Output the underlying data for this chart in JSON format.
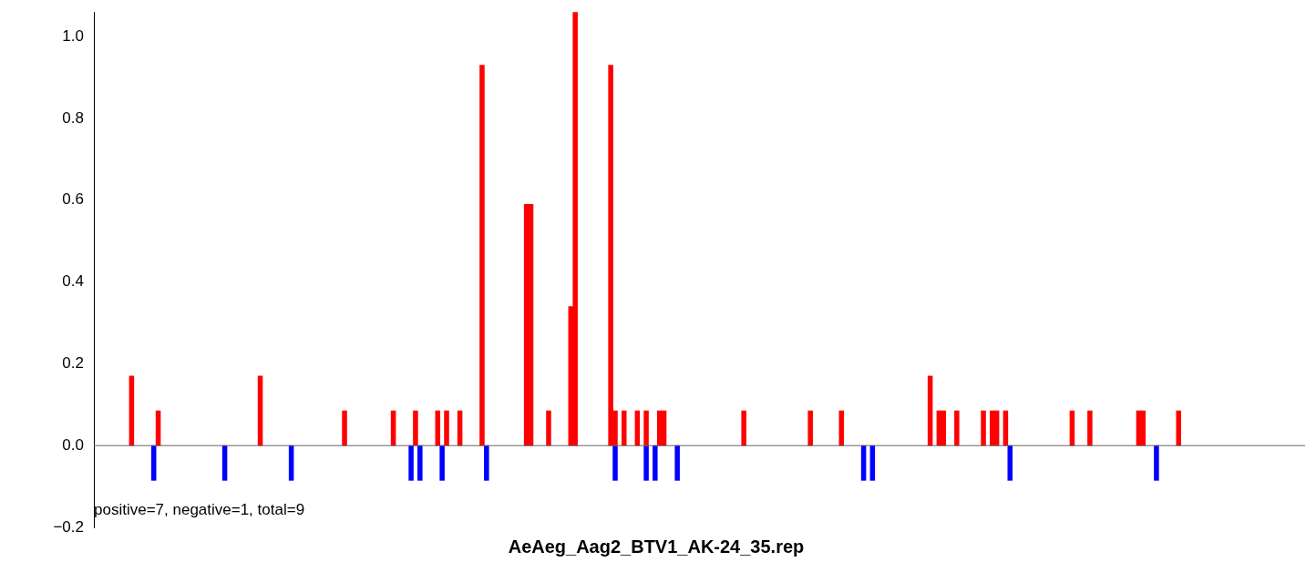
{
  "chart_data": {
    "type": "bar",
    "title": "AeAeg_Aag2_BTV1_AK-24_35.rep",
    "annotations": [
      "positive=7, negative=1, total=9"
    ],
    "categories": [
      null,
      null,
      null,
      null,
      null,
      null,
      null,
      null,
      null,
      null,
      null,
      null,
      null,
      null,
      null,
      null,
      null,
      null,
      null,
      null,
      null,
      null,
      null,
      null,
      null,
      null,
      null,
      null,
      null,
      null,
      null,
      null,
      null,
      null,
      null,
      null,
      null,
      null,
      null,
      null,
      null,
      null,
      null,
      null,
      null,
      null,
      null,
      null,
      null,
      null,
      null,
      null,
      null,
      null,
      null,
      null,
      null,
      null,
      null,
      null,
      null,
      null,
      null,
      null,
      null,
      null,
      null,
      null,
      null,
      null,
      null,
      null,
      null,
      null,
      null,
      null,
      null,
      null,
      null,
      null,
      null,
      null,
      null,
      null,
      null,
      null,
      null,
      null,
      null,
      null,
      null,
      null,
      null,
      null,
      null,
      null,
      null,
      null,
      null,
      null,
      null,
      null,
      null,
      null,
      null,
      null,
      null,
      null,
      null,
      null,
      null,
      null,
      null,
      null,
      null,
      null,
      null,
      null,
      null,
      null,
      null,
      null,
      null,
      null,
      null,
      null,
      null,
      null,
      null,
      null,
      null,
      null,
      null,
      null,
      null,
      null,
      null,
      null,
      null,
      null,
      null,
      null,
      null,
      null,
      null,
      null,
      null,
      null,
      null,
      null,
      null,
      null,
      null,
      null,
      null,
      null,
      null,
      null,
      null,
      null,
      null,
      null,
      null,
      null,
      null,
      null,
      null,
      null,
      null,
      null,
      null,
      null,
      null,
      null,
      null,
      null,
      null,
      null,
      null,
      null,
      null,
      null,
      null,
      null,
      null,
      null,
      null,
      null,
      null,
      null,
      null,
      null,
      null,
      null,
      null,
      null,
      null,
      null,
      null,
      null,
      null,
      null,
      null,
      null,
      null,
      null,
      null,
      null,
      null,
      null,
      null,
      null,
      null,
      null,
      null,
      null,
      null,
      null,
      null,
      null,
      null,
      null,
      null,
      null,
      null,
      null,
      null,
      null,
      null,
      null,
      null,
      null,
      null,
      null,
      null,
      null,
      null,
      null,
      null,
      null,
      null,
      null,
      null,
      null,
      null,
      null,
      null,
      null,
      null,
      null,
      null,
      null,
      null,
      null,
      null,
      null,
      null,
      null,
      null,
      null,
      null,
      null,
      null,
      null,
      null,
      null,
      null,
      null,
      null,
      null,
      null,
      null,
      null
    ],
    "series": [
      {
        "color": "#ff0000",
        "values": [
          0,
          0,
          0,
          0,
          0,
          0,
          0,
          0,
          0.17,
          0,
          0,
          0,
          0,
          0,
          0.085,
          0,
          0,
          0,
          0,
          0,
          0,
          0,
          0,
          0,
          0,
          0,
          0,
          0,
          0,
          0,
          0,
          0,
          0,
          0,
          0,
          0,
          0,
          0.17,
          0,
          0,
          0,
          0,
          0,
          0,
          0,
          0,
          0,
          0,
          0,
          0,
          0,
          0,
          0,
          0,
          0,
          0,
          0.085,
          0,
          0,
          0,
          0,
          0,
          0,
          0,
          0,
          0,
          0,
          0.085,
          0,
          0,
          0,
          0,
          0.085,
          0,
          0,
          0,
          0,
          0.085,
          0,
          0.085,
          0,
          0,
          0.085,
          0,
          0,
          0,
          0,
          0.93,
          0,
          0,
          0,
          0,
          0,
          0,
          0,
          0,
          0,
          0.59,
          0.59,
          0,
          0,
          0,
          0.085,
          0,
          0,
          0,
          0,
          0.34,
          1.06,
          0,
          0,
          0,
          0,
          0,
          0,
          0,
          0.93,
          0.085,
          0,
          0.085,
          0,
          0,
          0.085,
          0,
          0.085,
          0,
          0,
          0.085,
          0.085,
          0,
          0,
          0,
          0,
          0,
          0,
          0,
          0,
          0,
          0,
          0,
          0,
          0,
          0,
          0,
          0,
          0,
          0.085,
          0,
          0,
          0,
          0,
          0,
          0,
          0,
          0,
          0,
          0,
          0,
          0,
          0,
          0,
          0.085,
          0,
          0,
          0,
          0,
          0,
          0,
          0.085,
          0,
          0,
          0,
          0,
          0,
          0,
          0,
          0,
          0,
          0,
          0,
          0,
          0,
          0,
          0,
          0,
          0,
          0,
          0,
          0.17,
          0,
          0.085,
          0.085,
          0,
          0,
          0.085,
          0,
          0,
          0,
          0,
          0,
          0.085,
          0,
          0.085,
          0.085,
          0,
          0.085,
          0,
          0,
          0,
          0,
          0,
          0,
          0,
          0,
          0,
          0,
          0,
          0,
          0,
          0,
          0.085,
          0,
          0,
          0,
          0.085,
          0,
          0,
          0,
          0,
          0,
          0,
          0,
          0,
          0,
          0,
          0.085,
          0.085,
          0,
          0,
          0,
          0,
          0,
          0,
          0,
          0.085,
          0,
          0,
          0,
          0,
          0,
          0,
          0,
          0,
          0,
          0,
          0,
          0,
          0,
          0,
          0,
          0,
          0,
          0,
          0,
          0,
          0,
          0,
          0,
          0,
          0,
          0,
          0,
          0
        ]
      },
      {
        "color": "#0000ff",
        "values": [
          0,
          0,
          0,
          0,
          0,
          0,
          0,
          0,
          0,
          0,
          0,
          0,
          0,
          -0.085,
          0,
          0,
          0,
          0,
          0,
          0,
          0,
          0,
          0,
          0,
          0,
          0,
          0,
          0,
          0,
          -0.085,
          0,
          0,
          0,
          0,
          0,
          0,
          0,
          0,
          0,
          0,
          0,
          0,
          0,
          0,
          -0.085,
          0,
          0,
          0,
          0,
          0,
          0,
          0,
          0,
          0,
          0,
          0,
          0,
          0,
          0,
          0,
          0,
          0,
          0,
          0,
          0,
          0,
          0,
          0,
          0,
          0,
          0,
          -0.085,
          0,
          -0.085,
          0,
          0,
          0,
          0,
          -0.085,
          0,
          0,
          0,
          0,
          0,
          0,
          0,
          0,
          0,
          -0.085,
          0,
          0,
          0,
          0,
          0,
          0,
          0,
          0,
          0,
          0,
          0,
          0,
          0,
          0,
          0,
          0,
          0,
          0,
          0,
          0,
          0,
          0,
          0,
          0,
          0,
          0,
          0,
          0,
          -0.085,
          0,
          0,
          0,
          0,
          0,
          0,
          -0.085,
          0,
          -0.085,
          0,
          0,
          0,
          0,
          -0.085,
          0,
          0,
          0,
          0,
          0,
          0,
          0,
          0,
          0,
          0,
          0,
          0,
          0,
          0,
          0,
          0,
          0,
          0,
          0,
          0,
          0,
          0,
          0,
          0,
          0,
          0,
          0,
          0,
          0,
          0,
          0,
          0,
          0,
          0,
          0,
          0,
          0,
          0,
          0,
          0,
          0,
          -0.085,
          0,
          -0.085,
          0,
          0,
          0,
          0,
          0,
          0,
          0,
          0,
          0,
          0,
          0,
          0,
          0,
          0,
          0,
          0,
          0,
          0,
          0,
          0,
          0,
          0,
          0,
          0,
          0,
          0,
          0,
          0,
          0,
          0,
          -0.085,
          0,
          0,
          0,
          0,
          0,
          0,
          0,
          0,
          0,
          0,
          0,
          0,
          0,
          0,
          0,
          0,
          0,
          0,
          0,
          0,
          0,
          0,
          0,
          0,
          0,
          0,
          0,
          0,
          0,
          0,
          0,
          0,
          -0.085,
          0,
          0,
          0,
          0,
          0,
          0,
          0,
          0,
          0,
          0,
          0,
          0,
          0,
          0,
          0,
          0,
          0,
          0,
          0,
          0,
          0,
          0,
          0,
          0,
          0,
          0,
          0,
          0,
          0,
          0,
          0,
          0,
          0
        ]
      }
    ],
    "ylim": [
      -0.2,
      1.06
    ],
    "yticks": [
      {
        "value": -0.2,
        "label": "−0.2"
      },
      {
        "value": 0,
        "label": "0.0"
      },
      {
        "value": 0.2,
        "label": "0.2"
      },
      {
        "value": 0.4,
        "label": "0.4"
      },
      {
        "value": 0.6,
        "label": "0.6"
      },
      {
        "value": 0.8,
        "label": "0.8"
      },
      {
        "value": 1,
        "label": "1.0"
      }
    ],
    "tick_labels": "y",
    "ref_lines": [
      {
        "axis": "y",
        "value": 0,
        "color": "#666666"
      }
    ]
  }
}
